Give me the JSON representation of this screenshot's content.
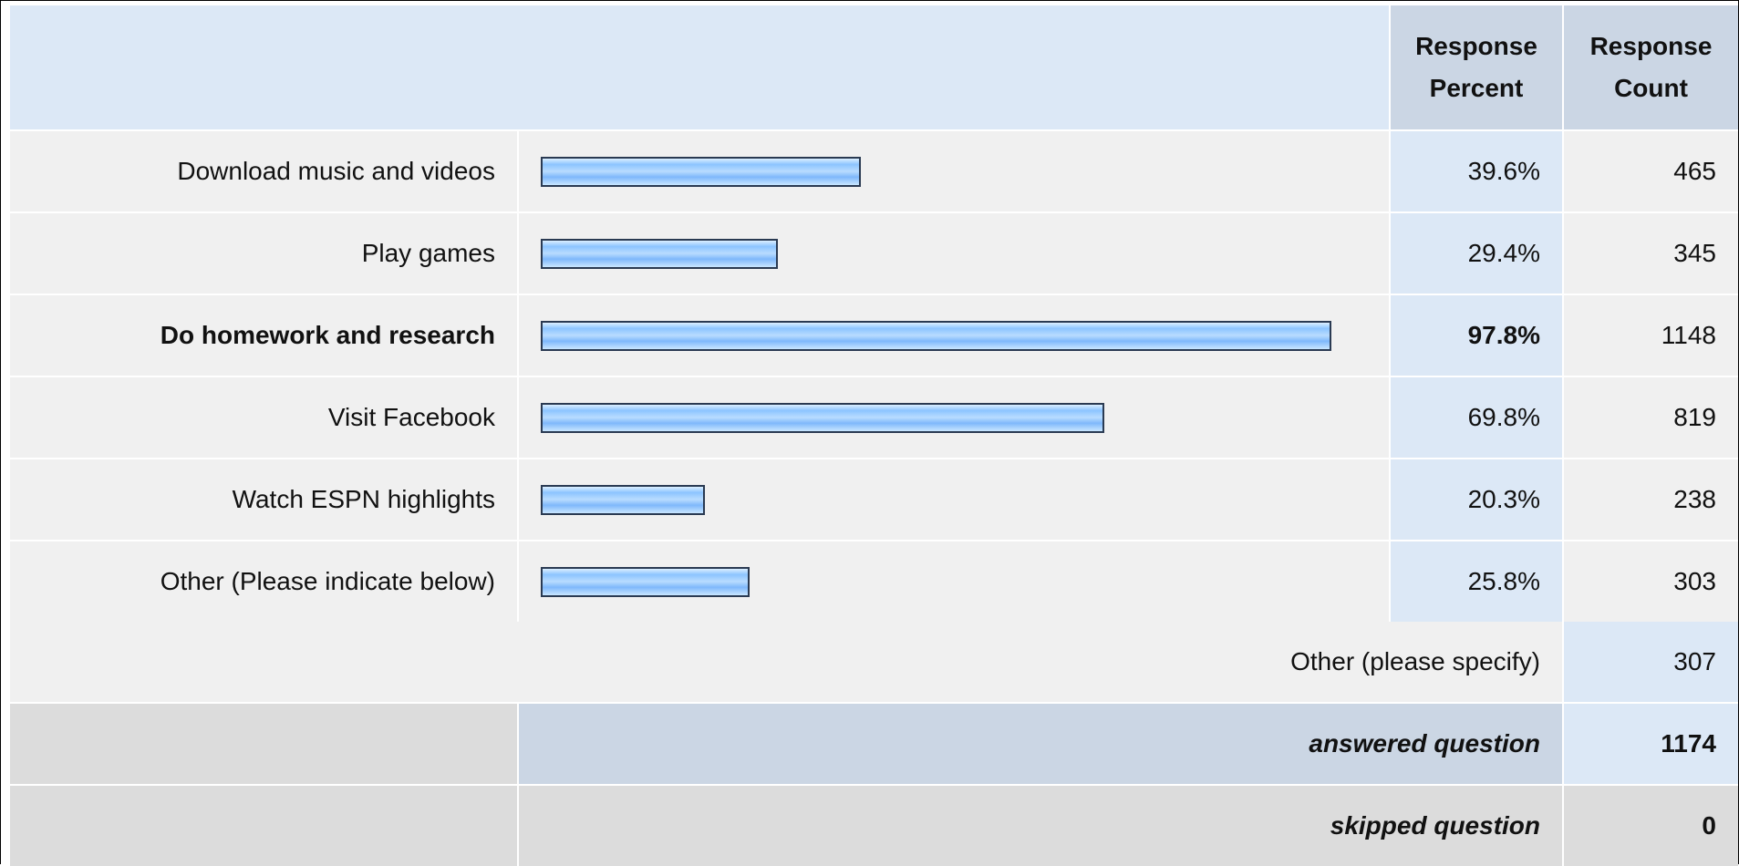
{
  "header": {
    "col_percent": "Response Percent",
    "col_count": "Response Count"
  },
  "chart_data": {
    "type": "bar",
    "categories": [
      "Download music and videos",
      "Play games",
      "Do homework and research",
      "Visit Facebook",
      "Watch ESPN highlights",
      "Other (Please indicate below)"
    ],
    "series": [
      {
        "values": [
          39.6,
          29.4,
          97.8,
          69.8,
          20.3,
          25.8
        ]
      }
    ],
    "percent_labels": [
      "39.6%",
      "29.4%",
      "97.8%",
      "69.8%",
      "20.3%",
      "25.8%"
    ],
    "counts": [
      "465",
      "345",
      "1148",
      "819",
      "238",
      "303"
    ],
    "highlighted_index": 2,
    "xlim": [
      0,
      100
    ]
  },
  "other_specify": {
    "label": "Other (please specify)",
    "count": "307"
  },
  "answered": {
    "label": "answered question",
    "count": "1174"
  },
  "skipped": {
    "label": "skipped question",
    "count": "0"
  },
  "colors": {
    "header_bg": "#dce8f6",
    "col_header_bg": "#cbd6e4",
    "row_bg": "#f0f0f0",
    "percent_col_bg": "#dce8f6",
    "footer_grey": "#dcdcdc",
    "footer_blue": "#cbd6e4",
    "bar_border": "#2a3a52"
  }
}
